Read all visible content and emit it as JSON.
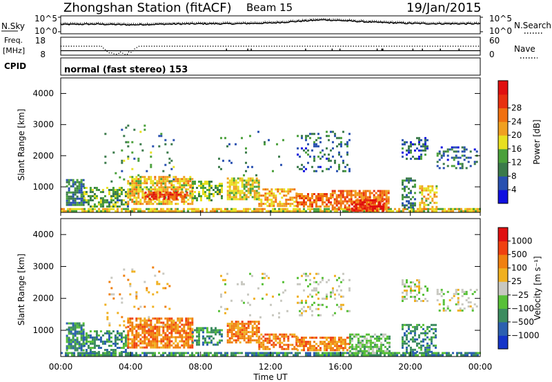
{
  "header": {
    "station": "Zhongshan Station (fitACF)",
    "beam": "Beam 15",
    "date": "19/Jan/2015"
  },
  "top_panels": {
    "nsky_label": "N.Sky",
    "nsearch_label": "N.Search",
    "freq_label_line1": "Freq.",
    "freq_label_line2": "[MHz]",
    "nave_label": "Nave",
    "cpid_label": "CPID",
    "cpid_text": "normal (fast stereo) 153",
    "noise_ticks_left": [
      "10^5",
      "10^0"
    ],
    "noise_ticks_right": [
      "10^5",
      "10^0"
    ],
    "freq_ticks": [
      "18",
      "8"
    ],
    "nave_ticks": [
      "60",
      "0"
    ]
  },
  "x_axis": {
    "label": "Time UT",
    "ticks": [
      "00:00",
      "04:00",
      "08:00",
      "12:00",
      "16:00",
      "20:00",
      "00:00"
    ]
  },
  "power_colorbar": {
    "label": "Power [dB]",
    "ticks": [
      "4",
      "8",
      "12",
      "16",
      "20",
      "24",
      "28"
    ],
    "colors": [
      "#1010e0",
      "#2850b0",
      "#3a7a4a",
      "#4aa03a",
      "#e8e020",
      "#f0a020",
      "#f07010",
      "#e83010",
      "#e01010"
    ]
  },
  "velocity_colorbar": {
    "label": "Velocity [m s⁻¹]",
    "ticks": [
      "1000",
      "500",
      "100",
      "25",
      "−25",
      "−100",
      "−500",
      "−1000"
    ],
    "colors": [
      "#1535c8",
      "#2c60b0",
      "#3c8c60",
      "#58c038",
      "#c8c8c0",
      "#f0b020",
      "#f08010",
      "#f04010",
      "#e01010"
    ]
  },
  "chart_data": [
    {
      "type": "line",
      "panel": "noise",
      "series": [
        {
          "name": "N.Sky",
          "style": "solid"
        },
        {
          "name": "N.Search",
          "style": "dotted"
        }
      ],
      "x": [
        0,
        2,
        4,
        6,
        8,
        10,
        12,
        14,
        15,
        16,
        18,
        20,
        22,
        24
      ],
      "y_log10_sky": [
        2.6,
        2.7,
        2.5,
        2.7,
        2.8,
        2.8,
        3.0,
        3.6,
        3.9,
        3.7,
        3.2,
        2.9,
        2.8,
        2.8
      ],
      "ylim_log10": [
        0,
        5
      ],
      "xlim_hours": [
        0,
        24
      ]
    },
    {
      "type": "line",
      "panel": "frequency_nave",
      "series": [
        {
          "name": "Freq.",
          "style": "solid"
        },
        {
          "name": "Nave",
          "style": "dotted"
        }
      ],
      "freq_mhz": 10.5,
      "nave_x": [
        0,
        2.3,
        2.8,
        3.3,
        4.0,
        4.5,
        24
      ],
      "nave_y": [
        30,
        30,
        5,
        8,
        6,
        30,
        30
      ],
      "freq_ylim": [
        8,
        18
      ],
      "nave_ylim": [
        0,
        60
      ]
    },
    {
      "type": "heatmap",
      "panel": "power",
      "xlabel": "Time UT",
      "ylabel": "Slant Range [km]",
      "xlim_hours": [
        0,
        24
      ],
      "ylim_km": [
        180,
        4500
      ],
      "yticks": [
        1000,
        2000,
        3000,
        4000
      ],
      "colorbar_range_db": [
        0,
        30
      ],
      "regions": [
        {
          "t": [
            0.0,
            24.0
          ],
          "r": [
            200,
            320
          ],
          "v": 16,
          "d": 0.8
        },
        {
          "t": [
            0.3,
            1.3
          ],
          "r": [
            400,
            1250
          ],
          "v": 8,
          "d": 0.8
        },
        {
          "t": [
            1.3,
            3.8
          ],
          "r": [
            350,
            1000
          ],
          "v": 10,
          "d": 0.6
        },
        {
          "t": [
            3.8,
            7.5
          ],
          "r": [
            450,
            1350
          ],
          "v": 17,
          "d": 0.75
        },
        {
          "t": [
            4.8,
            7.2
          ],
          "r": [
            600,
            850
          ],
          "v": 25,
          "d": 0.7
        },
        {
          "t": [
            7.5,
            9.2
          ],
          "r": [
            550,
            1200
          ],
          "v": 12,
          "d": 0.6
        },
        {
          "t": [
            9.5,
            11.3
          ],
          "r": [
            600,
            1300
          ],
          "v": 15,
          "d": 0.7
        },
        {
          "t": [
            11.3,
            13.5
          ],
          "r": [
            400,
            950
          ],
          "v": 19,
          "d": 0.6
        },
        {
          "t": [
            13.5,
            15.5
          ],
          "r": [
            350,
            800
          ],
          "v": 22,
          "d": 0.7
        },
        {
          "t": [
            15.5,
            18.8
          ],
          "r": [
            300,
            900
          ],
          "v": 23,
          "d": 0.75
        },
        {
          "t": [
            16.5,
            18.5
          ],
          "r": [
            250,
            600
          ],
          "v": 27,
          "d": 0.6
        },
        {
          "t": [
            19.5,
            20.3
          ],
          "r": [
            350,
            1300
          ],
          "v": 8,
          "d": 0.45
        },
        {
          "t": [
            20.5,
            21.5
          ],
          "r": [
            300,
            1050
          ],
          "v": 17,
          "d": 0.5
        },
        {
          "t": [
            13.5,
            16.5
          ],
          "r": [
            1500,
            2800
          ],
          "v": 6,
          "d": 0.2
        },
        {
          "t": [
            19.5,
            21.0
          ],
          "r": [
            1900,
            2600
          ],
          "v": 5,
          "d": 0.35
        },
        {
          "t": [
            21.5,
            23.8
          ],
          "r": [
            1600,
            2300
          ],
          "v": 6,
          "d": 0.3
        },
        {
          "t": [
            2.5,
            6.5
          ],
          "r": [
            1100,
            3000
          ],
          "v": 9,
          "d": 0.06
        },
        {
          "t": [
            9.0,
            13.0
          ],
          "r": [
            1400,
            2800
          ],
          "v": 7,
          "d": 0.05
        }
      ]
    },
    {
      "type": "heatmap",
      "panel": "velocity",
      "xlabel": "Time UT",
      "ylabel": "Slant Range [km]",
      "xlim_hours": [
        0,
        24
      ],
      "ylim_km": [
        180,
        4500
      ],
      "yticks": [
        1000,
        2000,
        3000,
        4000
      ],
      "colorbar_levels_ms": [
        1000,
        500,
        100,
        25,
        -25,
        -100,
        -500,
        -1000
      ],
      "regions": [
        {
          "t": [
            0.0,
            24.0
          ],
          "r": [
            200,
            320
          ],
          "v": 2,
          "d": 0.8
        },
        {
          "t": [
            0.3,
            1.3
          ],
          "r": [
            400,
            1250
          ],
          "v": 2,
          "d": 0.8
        },
        {
          "t": [
            1.3,
            3.8
          ],
          "r": [
            350,
            1000
          ],
          "v": 2,
          "d": 0.5
        },
        {
          "t": [
            3.8,
            7.5
          ],
          "r": [
            450,
            1400
          ],
          "v": 6,
          "d": 0.75
        },
        {
          "t": [
            7.5,
            9.2
          ],
          "r": [
            550,
            1100
          ],
          "v": 2,
          "d": 0.55
        },
        {
          "t": [
            9.5,
            11.3
          ],
          "r": [
            600,
            1300
          ],
          "v": 6,
          "d": 0.7
        },
        {
          "t": [
            11.3,
            13.5
          ],
          "r": [
            400,
            900
          ],
          "v": 6,
          "d": 0.6
        },
        {
          "t": [
            13.5,
            16.5
          ],
          "r": [
            350,
            800
          ],
          "v": 6,
          "d": 0.7
        },
        {
          "t": [
            16.5,
            18.8
          ],
          "r": [
            300,
            900
          ],
          "v": 3,
          "d": 0.7
        },
        {
          "t": [
            19.5,
            21.5
          ],
          "r": [
            300,
            1200
          ],
          "v": 2,
          "d": 0.5
        },
        {
          "t": [
            13.5,
            16.5
          ],
          "r": [
            1500,
            2800
          ],
          "v": 4,
          "d": 0.2
        },
        {
          "t": [
            19.5,
            21.0
          ],
          "r": [
            1900,
            2600
          ],
          "v": 4,
          "d": 0.35
        },
        {
          "t": [
            21.5,
            23.8
          ],
          "r": [
            1600,
            2300
          ],
          "v": 4,
          "d": 0.3
        },
        {
          "t": [
            2.5,
            6.5
          ],
          "r": [
            1100,
            3000
          ],
          "v": 5,
          "d": 0.05
        },
        {
          "t": [
            9.0,
            13.0
          ],
          "r": [
            1400,
            2800
          ],
          "v": 4,
          "d": 0.05
        }
      ]
    }
  ]
}
